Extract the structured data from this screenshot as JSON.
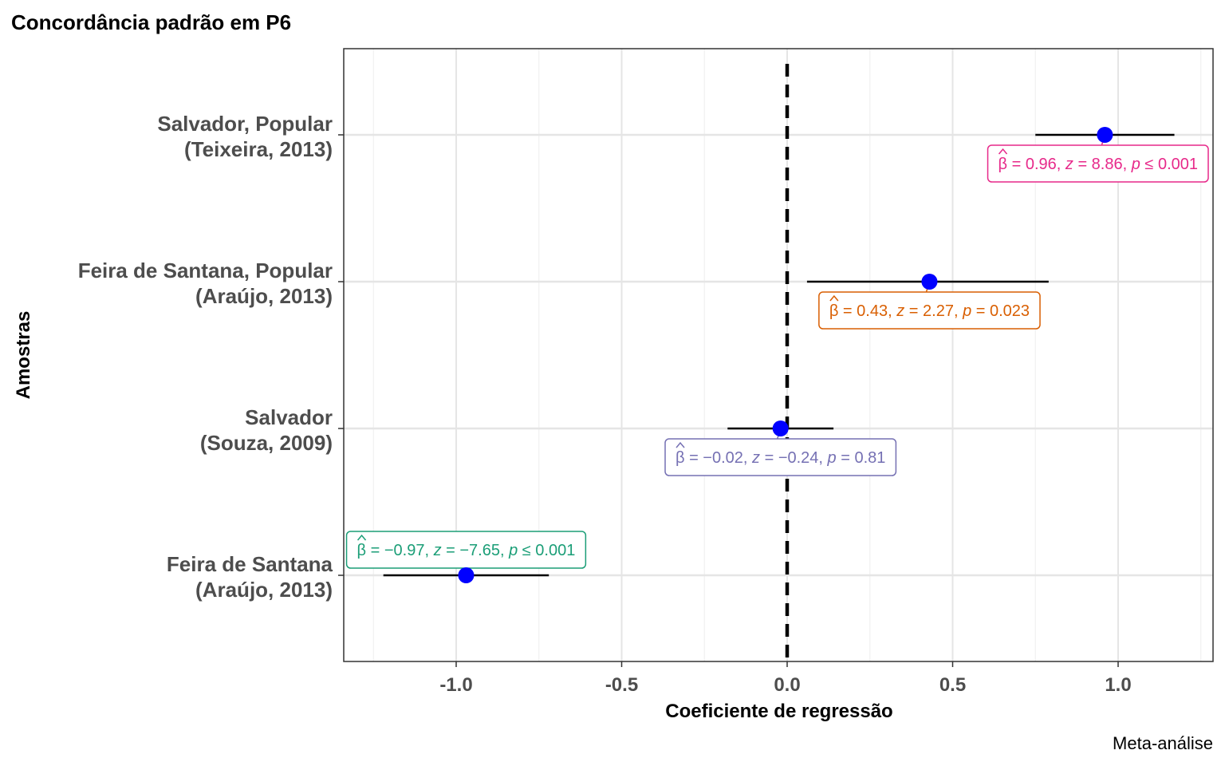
{
  "title": "Concordância padrão em P6",
  "caption": "Meta-análise",
  "chart_data": {
    "type": "forest",
    "title": "Concordância padrão em P6",
    "xlabel": "Coeficiente de regressão",
    "ylabel": "Amostras",
    "xlim": [
      -1.25,
      1.28
    ],
    "x_ticks": [
      -1.0,
      -0.5,
      0.0,
      0.5,
      1.0
    ],
    "x_tick_labels": [
      "-1.0",
      "-0.5",
      "0.0",
      "0.5",
      "1.0"
    ],
    "reference_line": 0,
    "grid": true,
    "rows": [
      {
        "label_line1": "Salvador, Popular",
        "label_line2": "(Teixeira, 2013)",
        "estimate": 0.96,
        "ci_low": 0.75,
        "ci_high": 1.17,
        "ann": {
          "beta": "0.96",
          "z": "8.86",
          "p_rel": "≤",
          "p": "0.001"
        },
        "color": "#e7298a"
      },
      {
        "label_line1": "Feira de Santana, Popular",
        "label_line2": "(Araújo, 2013)",
        "estimate": 0.43,
        "ci_low": 0.06,
        "ci_high": 0.79,
        "ann": {
          "beta": "0.43",
          "z": "2.27",
          "p_rel": "=",
          "p": "0.023"
        },
        "color": "#d95f02"
      },
      {
        "label_line1": "Salvador",
        "label_line2": "(Souza, 2009)",
        "estimate": -0.02,
        "ci_low": -0.18,
        "ci_high": 0.14,
        "ann": {
          "beta": "−0.02",
          "z": "−0.24",
          "p_rel": "=",
          "p": "0.81"
        },
        "color": "#7570b3"
      },
      {
        "label_line1": "Feira de Santana",
        "label_line2": "(Araújo, 2013)",
        "estimate": -0.97,
        "ci_low": -1.22,
        "ci_high": -0.72,
        "ann": {
          "beta": "−0.97",
          "z": "−7.65",
          "p_rel": "≤",
          "p": "0.001"
        },
        "color": "#1b9e77"
      }
    ],
    "point_color": "#0000ff"
  }
}
